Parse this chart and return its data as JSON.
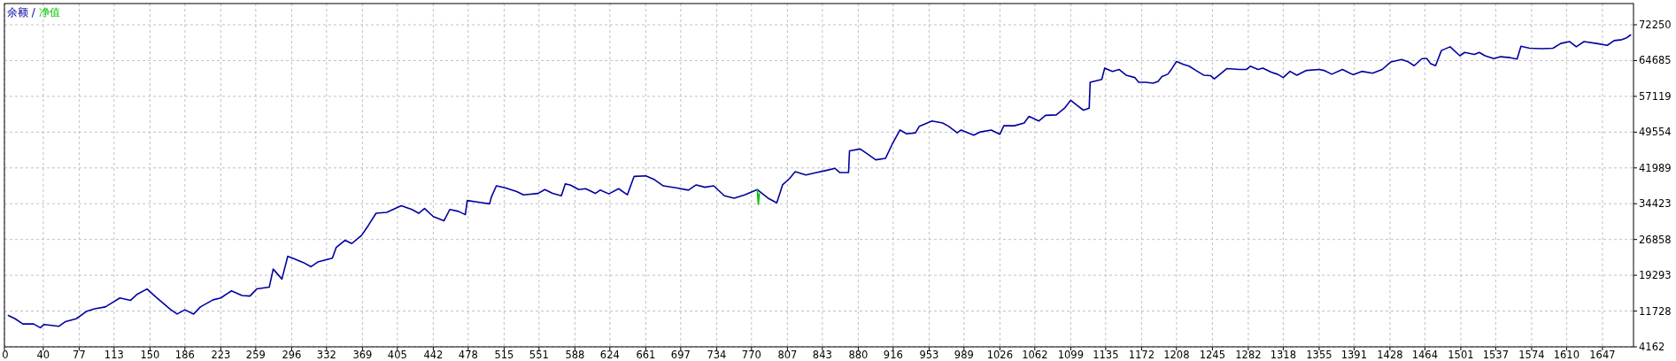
{
  "chart_data": {
    "type": "line",
    "legend": "top left",
    "grid": true,
    "annotations": [
      "/"
    ],
    "xlim": [
      0,
      1679
    ],
    "ylim": [
      4162,
      76740
    ],
    "xticks": [
      0,
      40,
      77,
      113,
      150,
      186,
      223,
      259,
      296,
      332,
      369,
      405,
      442,
      478,
      515,
      551,
      588,
      624,
      661,
      697,
      734,
      770,
      807,
      843,
      880,
      916,
      953,
      989,
      1026,
      1062,
      1099,
      1135,
      1172,
      1208,
      1245,
      1282,
      1318,
      1355,
      1391,
      1428,
      1464,
      1501,
      1537,
      1574,
      1610,
      1647
    ],
    "yticks": [
      4162,
      11728,
      19293,
      26858,
      34423,
      41989,
      49554,
      57119,
      64685,
      72250
    ],
    "series": [
      {
        "name": "余额",
        "color": "#0000a0",
        "x": [
          4,
          11,
          19,
          30,
          37,
          41,
          56,
          63,
          74,
          85,
          93,
          104,
          111,
          119,
          130,
          137,
          147,
          156,
          163,
          171,
          178,
          186,
          195,
          202,
          215,
          223,
          234,
          245,
          253,
          260,
          273,
          277,
          286,
          292,
          297,
          308,
          316,
          323,
          338,
          342,
          351,
          358,
          368,
          375,
          383,
          394,
          409,
          420,
          427,
          433,
          442,
          453,
          459,
          468,
          475,
          477,
          490,
          500,
          502,
          507,
          516,
          528,
          535,
          550,
          557,
          565,
          574,
          578,
          583,
          592,
          599,
          609,
          614,
          623,
          633,
          642,
          649,
          661,
          670,
          679,
          692,
          705,
          713,
          722,
          731,
          742,
          752,
          763,
          770,
          776,
          787,
          796,
          802,
          809,
          815,
          826,
          837,
          848,
          856,
          861,
          870,
          871,
          882,
          889,
          898,
          908,
          915,
          923,
          930,
          939,
          943,
          956,
          967,
          973,
          982,
          986,
          999,
          1006,
          1017,
          1026,
          1030,
          1041,
          1051,
          1056,
          1066,
          1073,
          1084,
          1093,
          1099,
          1105,
          1112,
          1118,
          1119,
          1131,
          1134,
          1142,
          1149,
          1156,
          1165,
          1169,
          1176,
          1184,
          1189,
          1193,
          1199,
          1202,
          1208,
          1215,
          1221,
          1228,
          1236,
          1243,
          1247,
          1254,
          1260,
          1273,
          1280,
          1284,
          1292,
          1297,
          1306,
          1312,
          1318,
          1325,
          1332,
          1342,
          1355,
          1360,
          1368,
          1379,
          1390,
          1399,
          1410,
          1420,
          1429,
          1440,
          1446,
          1453,
          1461,
          1466,
          1470,
          1475,
          1481,
          1490,
          1500,
          1505,
          1515,
          1520,
          1526,
          1535,
          1542,
          1552,
          1559,
          1563,
          1572,
          1585,
          1596,
          1604,
          1613,
          1620,
          1628,
          1641,
          1652,
          1659,
          1667,
          1672,
          1676
        ],
        "values": [
          10800,
          10100,
          9000,
          9000,
          8200,
          8900,
          8500,
          9500,
          10100,
          11700,
          12200,
          12600,
          13500,
          14500,
          14000,
          15300,
          16400,
          14700,
          13500,
          12100,
          11100,
          12000,
          11100,
          12600,
          14100,
          14500,
          16000,
          15000,
          14900,
          16400,
          16800,
          20600,
          18500,
          23300,
          22900,
          22000,
          21100,
          22100,
          22900,
          25200,
          26700,
          26000,
          27700,
          29800,
          32400,
          32600,
          34000,
          33200,
          32400,
          33400,
          31700,
          30800,
          33200,
          32800,
          32100,
          35100,
          34700,
          34400,
          35900,
          38200,
          37800,
          37000,
          36300,
          36600,
          37400,
          36600,
          36100,
          38600,
          38400,
          37400,
          37600,
          36600,
          37300,
          36500,
          37600,
          36300,
          40200,
          40300,
          39500,
          38200,
          37800,
          37300,
          38400,
          37900,
          38200,
          36100,
          35600,
          36300,
          36900,
          37400,
          35600,
          34600,
          38400,
          39700,
          41200,
          40500,
          41000,
          41500,
          41900,
          41000,
          41000,
          45600,
          46000,
          45000,
          43700,
          44000,
          47000,
          50000,
          49200,
          49400,
          50800,
          51900,
          51500,
          50800,
          49400,
          50000,
          48900,
          49600,
          50000,
          49100,
          50900,
          50900,
          51500,
          52900,
          51900,
          53100,
          53200,
          54700,
          56300,
          55300,
          54200,
          54600,
          60100,
          60700,
          63100,
          62400,
          62800,
          61600,
          61100,
          60100,
          60100,
          59900,
          60300,
          61300,
          61800,
          62600,
          64500,
          63900,
          63500,
          62600,
          61600,
          61500,
          60800,
          62000,
          63000,
          62800,
          62800,
          63500,
          62800,
          63100,
          62200,
          61800,
          61100,
          62400,
          61600,
          62600,
          62800,
          62600,
          61800,
          62800,
          61700,
          62400,
          62000,
          62800,
          64400,
          64900,
          64500,
          63600,
          65100,
          65100,
          64000,
          63600,
          66800,
          67600,
          65700,
          66400,
          66000,
          66400,
          65700,
          65100,
          65500,
          65300,
          65000,
          67700,
          67300,
          67200,
          67300,
          68300,
          68700,
          67600,
          68700,
          68300,
          67900,
          68900,
          69100,
          69500,
          70100
        ]
      },
      {
        "name": "净值",
        "color": "#00c000",
        "x": [
          776,
          777,
          778
        ],
        "values": [
          37400,
          34300,
          36500
        ]
      }
    ]
  }
}
